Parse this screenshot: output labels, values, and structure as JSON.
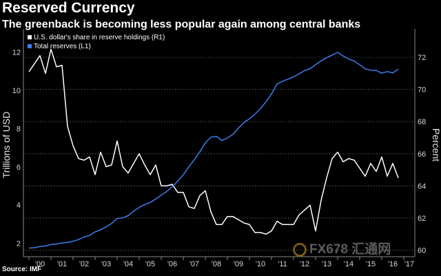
{
  "title": "Reserved Currency",
  "subtitle": "The greenback is becoming less popular again among central banks",
  "source": "Source: IMF",
  "watermark": "FX678 汇通网",
  "colors": {
    "background": "#000000",
    "usd_share": "#ffffff",
    "total_reserves": "#3d7ff0"
  },
  "chart_data": {
    "type": "line",
    "ylabel_left": "Trillions of USD",
    "ylabel_right": "Percent",
    "ylim_left": [
      1.3,
      13
    ],
    "ylim_right": [
      59.6,
      73.5
    ],
    "yticks_left": [
      "2",
      "4",
      "6",
      "8",
      "10",
      "12"
    ],
    "yticks_right": [
      "60",
      "62",
      "64",
      "66",
      "68",
      "70",
      "72"
    ],
    "xlim": [
      1999.75,
      2017.5
    ],
    "xticks": [
      "'00",
      "'01",
      "'02",
      "'03",
      "'04",
      "'05",
      "'06",
      "'07",
      "'08",
      "'09",
      "'10",
      "'11",
      "'12",
      "'13",
      "'14",
      "'15",
      "'16",
      "'17"
    ],
    "legend": {
      "position": "top-left"
    },
    "grid": "dotted horizontal",
    "series": [
      {
        "name": "U.S. dollar's share in reserve holdings (R1)",
        "axis": "right",
        "color": "#ffffff",
        "x": [
          2000,
          2000.25,
          2000.5,
          2000.75,
          2001,
          2001.25,
          2001.5,
          2001.75,
          2002,
          2002.25,
          2002.5,
          2002.75,
          2003,
          2003.25,
          2003.5,
          2003.75,
          2004,
          2004.25,
          2004.5,
          2004.75,
          2005,
          2005.25,
          2005.5,
          2005.75,
          2006,
          2006.25,
          2006.5,
          2006.75,
          2007,
          2007.25,
          2007.5,
          2007.75,
          2008,
          2008.25,
          2008.5,
          2008.75,
          2009,
          2009.25,
          2009.5,
          2009.75,
          2010,
          2010.25,
          2010.5,
          2010.75,
          2011,
          2011.25,
          2011.5,
          2011.75,
          2012,
          2012.25,
          2012.5,
          2012.75,
          2013,
          2013.25,
          2013.5,
          2013.75,
          2014,
          2014.25,
          2014.5,
          2014.75,
          2015,
          2015.25,
          2015.5,
          2015.75,
          2016,
          2016.25,
          2016.5,
          2016.75
        ],
        "values": [
          71.1,
          71.6,
          72.1,
          71.0,
          72.5,
          71.4,
          71.5,
          67.7,
          66.5,
          65.7,
          65.6,
          65.8,
          64.7,
          66.1,
          65.2,
          65.3,
          66.8,
          65.2,
          64.8,
          65.4,
          66.0,
          65.3,
          64.7,
          65.3,
          64.0,
          64.0,
          64.1,
          63.6,
          63.6,
          62.7,
          62.6,
          63.4,
          63.7,
          62.4,
          61.6,
          61.6,
          62.1,
          62.1,
          61.9,
          61.7,
          61.6,
          61.1,
          61.1,
          61.0,
          61.2,
          61.8,
          61.6,
          61.6,
          61.6,
          62.2,
          62.5,
          62.8,
          61.2,
          63.1,
          64.5,
          65.7,
          66.1,
          65.5,
          65.7,
          65.6,
          65.1,
          64.6,
          65.4,
          64.9,
          65.8,
          64.6,
          65.4,
          64.5
        ]
      },
      {
        "name": "Total reserves (L1)",
        "axis": "left",
        "color": "#3d7ff0",
        "x": [
          2000,
          2000.25,
          2000.5,
          2000.75,
          2001,
          2001.25,
          2001.5,
          2001.75,
          2002,
          2002.25,
          2002.5,
          2002.75,
          2003,
          2003.25,
          2003.5,
          2003.75,
          2004,
          2004.25,
          2004.5,
          2004.75,
          2005,
          2005.25,
          2005.5,
          2005.75,
          2006,
          2006.25,
          2006.5,
          2006.75,
          2007,
          2007.25,
          2007.5,
          2007.75,
          2008,
          2008.25,
          2008.5,
          2008.75,
          2009,
          2009.25,
          2009.5,
          2009.75,
          2010,
          2010.25,
          2010.5,
          2010.75,
          2011,
          2011.25,
          2011.5,
          2011.75,
          2012,
          2012.25,
          2012.5,
          2012.75,
          2013,
          2013.25,
          2013.5,
          2013.75,
          2014,
          2014.25,
          2014.5,
          2014.75,
          2015,
          2015.25,
          2015.5,
          2015.75,
          2016,
          2016.25,
          2016.5,
          2016.75
        ],
        "values": [
          1.75,
          1.77,
          1.83,
          1.86,
          1.94,
          1.96,
          2.02,
          2.05,
          2.1,
          2.2,
          2.33,
          2.41,
          2.6,
          2.71,
          2.86,
          3.04,
          3.3,
          3.33,
          3.45,
          3.68,
          3.88,
          4.03,
          4.14,
          4.32,
          4.52,
          4.71,
          4.96,
          5.25,
          5.59,
          6.0,
          6.38,
          6.79,
          7.26,
          7.55,
          7.6,
          7.38,
          7.51,
          7.7,
          8.03,
          8.32,
          8.52,
          8.76,
          9.05,
          9.41,
          9.82,
          10.33,
          10.48,
          10.59,
          10.71,
          10.87,
          11.04,
          11.14,
          11.35,
          11.55,
          11.71,
          11.85,
          11.99,
          11.81,
          11.65,
          11.54,
          11.35,
          11.13,
          11.06,
          11.05,
          10.9,
          10.99,
          10.92,
          11.11
        ]
      }
    ]
  }
}
